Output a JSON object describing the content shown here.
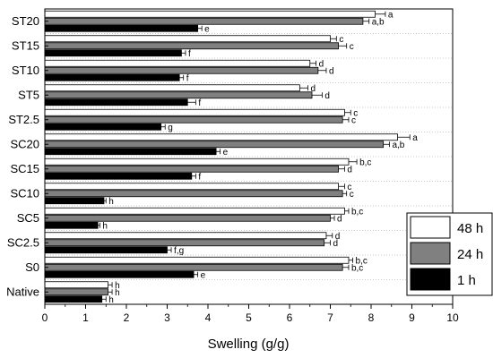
{
  "chart_data": {
    "type": "bar",
    "orientation": "horizontal",
    "xlabel": "Swelling (g/g)",
    "ylabel": "",
    "xlim": [
      0,
      10
    ],
    "x_ticks": [
      "0",
      "1",
      "2",
      "3",
      "4",
      "5",
      "6",
      "7",
      "8",
      "9",
      "10"
    ],
    "grid": "dotted horizontal separators between categories",
    "legend_position": "bottom-right",
    "categories": [
      "ST20",
      "ST15",
      "ST10",
      "ST5",
      "ST2.5",
      "SC20",
      "SC15",
      "SC10",
      "SC5",
      "SC2.5",
      "S0",
      "Native"
    ],
    "series": [
      {
        "name": "48 h",
        "color": "#ffffff",
        "values": [
          8.1,
          7.0,
          6.5,
          6.25,
          7.35,
          8.65,
          7.45,
          7.2,
          7.35,
          6.9,
          7.45,
          1.55
        ],
        "errors": [
          0.25,
          0.15,
          0.15,
          0.2,
          0.15,
          0.3,
          0.2,
          0.15,
          0.1,
          0.15,
          0.1,
          0.1
        ],
        "significance": [
          "a",
          "c",
          "d",
          "d",
          "c",
          "a",
          "b,c",
          "c",
          "b,c",
          "d",
          "b,c",
          "h"
        ]
      },
      {
        "name": "24 h",
        "color": "#808080",
        "values": [
          7.8,
          7.2,
          6.7,
          6.55,
          7.3,
          8.3,
          7.2,
          7.3,
          7.0,
          6.85,
          7.3,
          1.55
        ],
        "errors": [
          0.15,
          0.2,
          0.2,
          0.25,
          0.15,
          0.15,
          0.15,
          0.1,
          0.1,
          0.15,
          0.15,
          0.1
        ],
        "significance": [
          "a,b",
          "c",
          "d",
          "d",
          "c",
          "a,b",
          "d",
          "c",
          "d",
          "d",
          "b,c",
          "h"
        ]
      },
      {
        "name": "1 h",
        "color": "#000000",
        "values": [
          3.75,
          3.35,
          3.3,
          3.5,
          2.85,
          4.2,
          3.6,
          1.45,
          1.3,
          3.0,
          3.65,
          1.4
        ],
        "errors": [
          0.1,
          0.1,
          0.1,
          0.2,
          0.1,
          0.1,
          0.1,
          0.05,
          0.05,
          0.1,
          0.1,
          0.1
        ],
        "significance": [
          "e",
          "f",
          "f",
          "f",
          "g",
          "e",
          "f",
          "h",
          "h",
          "f,g",
          "e",
          "h"
        ]
      }
    ]
  }
}
